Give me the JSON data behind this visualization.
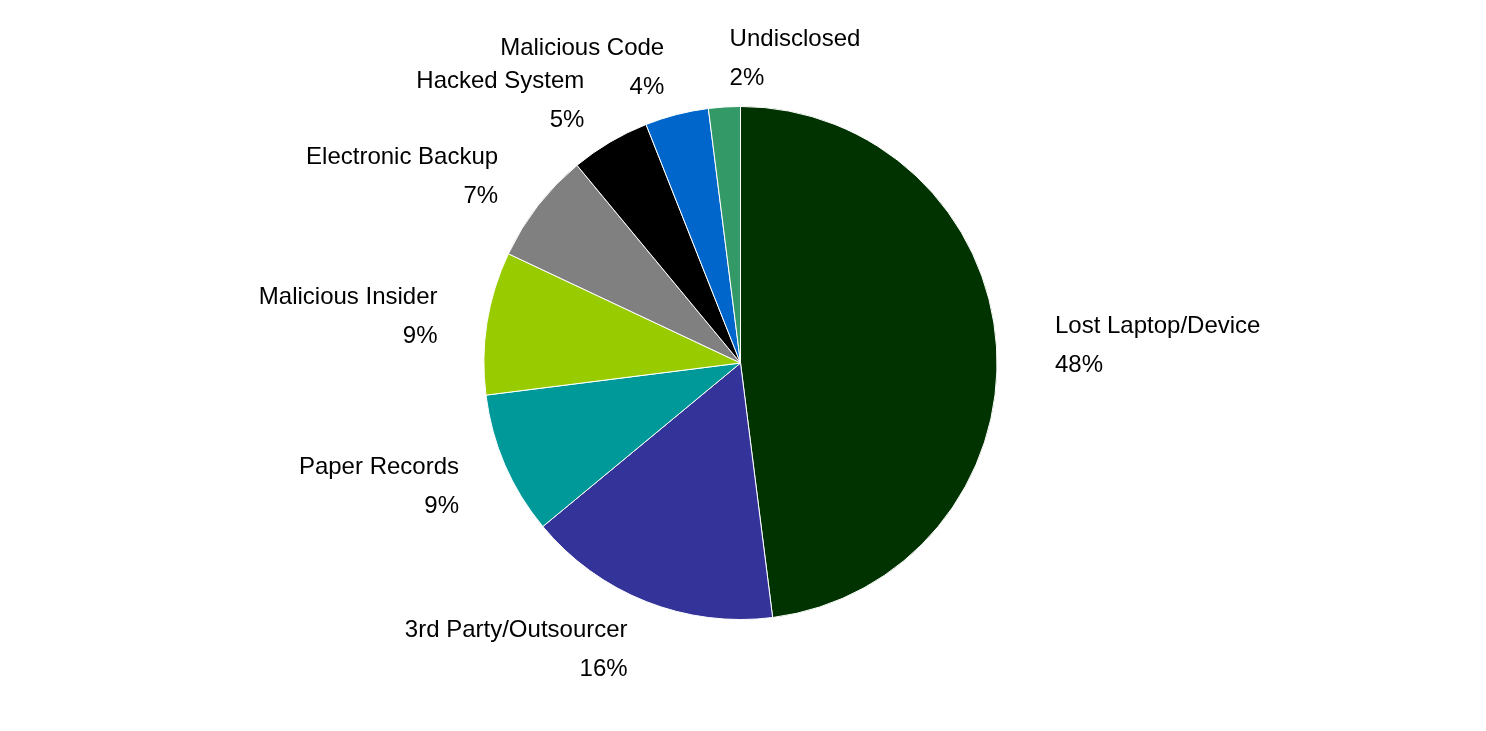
{
  "chart_data": {
    "type": "pie",
    "categories": [
      "Lost Laptop/Device",
      "3rd Party/Outsourcer",
      "Paper Records",
      "Malicious Insider",
      "Electronic Backup",
      "Hacked System",
      "Malicious Code",
      "Undisclosed"
    ],
    "values": [
      48,
      16,
      9,
      9,
      7,
      5,
      4,
      2
    ],
    "value_labels": [
      "48%",
      "16%",
      "9%",
      "9%",
      "7%",
      "5%",
      "4%",
      "2%"
    ],
    "colors": [
      "#003300",
      "#333399",
      "#009999",
      "#99cc00",
      "#808080",
      "#000000",
      "#0066cc",
      "#339966"
    ]
  }
}
